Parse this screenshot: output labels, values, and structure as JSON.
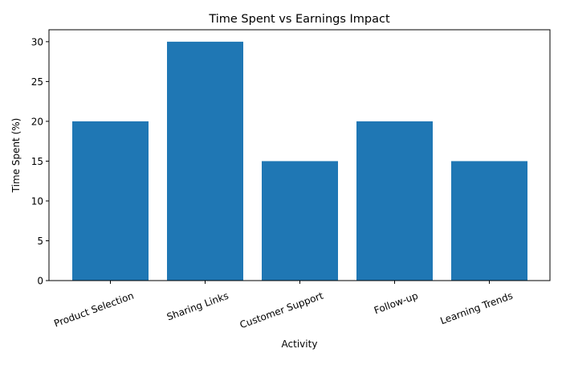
{
  "chart_data": {
    "type": "bar",
    "title": "Time Spent vs Earnings Impact",
    "xlabel": "Activity",
    "ylabel": "Time Spent (%)",
    "categories": [
      "Product Selection",
      "Sharing Links",
      "Customer Support",
      "Follow-up",
      "Learning Trends"
    ],
    "values": [
      20,
      30,
      15,
      20,
      15
    ],
    "ylim": [
      0,
      31.5
    ],
    "yticks": [
      0,
      5,
      10,
      15,
      20,
      25,
      30
    ],
    "xtick_rotation": 20,
    "grid": false,
    "legend": null,
    "bar_color": "#1f77b4"
  }
}
